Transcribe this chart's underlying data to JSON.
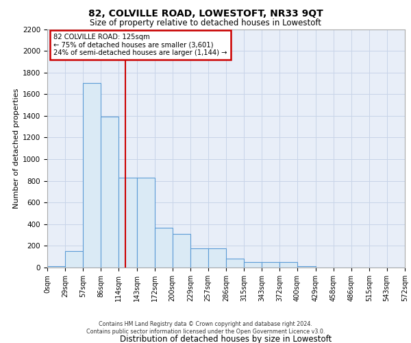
{
  "title": "82, COLVILLE ROAD, LOWESTOFT, NR33 9QT",
  "subtitle": "Size of property relative to detached houses in Lowestoft",
  "xlabel": "Distribution of detached houses by size in Lowestoft",
  "ylabel": "Number of detached properties",
  "footer_line1": "Contains HM Land Registry data © Crown copyright and database right 2024.",
  "footer_line2": "Contains public sector information licensed under the Open Government Licence v3.0.",
  "annotation_line1": "82 COLVILLE ROAD: 125sqm",
  "annotation_line2": "← 75% of detached houses are smaller (3,601)",
  "annotation_line3": "24% of semi-detached houses are larger (1,144) →",
  "property_size": 125,
  "bin_edges": [
    0,
    29,
    57,
    86,
    114,
    143,
    172,
    200,
    229,
    257,
    286,
    315,
    343,
    372,
    400,
    429,
    458,
    486,
    515,
    543,
    572
  ],
  "bar_heights": [
    10,
    150,
    1700,
    1390,
    830,
    830,
    370,
    310,
    175,
    175,
    80,
    50,
    50,
    50,
    10,
    0,
    0,
    0,
    0,
    0
  ],
  "bar_color": "#daeaf5",
  "bar_edge_color": "#5b9bd5",
  "vline_color": "#cc0000",
  "vline_x": 125,
  "annotation_box_color": "#cc0000",
  "grid_color": "#c8d4e8",
  "bg_color": "#e8eef8",
  "ylim": [
    0,
    2200
  ],
  "yticks": [
    0,
    200,
    400,
    600,
    800,
    1000,
    1200,
    1400,
    1600,
    1800,
    2000,
    2200
  ]
}
